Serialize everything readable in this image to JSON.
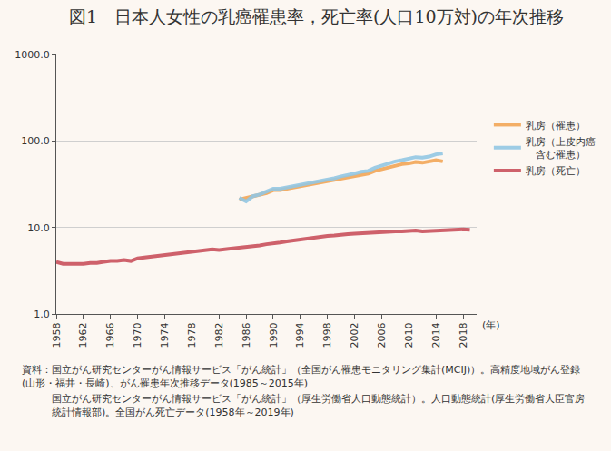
{
  "chart_data": {
    "type": "line",
    "title": "図1　日本人女性の乳癌罹患率，死亡率(人口10万対)の年次推移",
    "xlabel": "(年)",
    "source": [
      "資料：国立がん研究センターがん情報サービス「がん統計」（全国がん罹患モニタリング集計(MCIJ)）。高精度地域がん登録(山形・福井・長崎)、がん罹患年次推移データ(1985～2015年)",
      "国立がん研究センターがん情報サービス「がん統計」（厚生労働省人口動態統計）。人口動態統計(厚生労働省大臣官房統計情報部)。全国がん死亡データ(1958年～2019年)"
    ],
    "log": "y",
    "grid": "y",
    "legend": "right",
    "xlim": [
      1958,
      2020
    ],
    "xticks": [
      1958,
      1962,
      1966,
      1970,
      1974,
      1978,
      1982,
      1986,
      1990,
      1994,
      1998,
      2002,
      2006,
      2010,
      2014,
      2018
    ],
    "ylim": [
      1,
      1000
    ],
    "yticks": [
      {
        "value": 1,
        "label": "1.0"
      },
      {
        "value": 10,
        "label": "10.0"
      },
      {
        "value": 100,
        "label": "100.0"
      },
      {
        "value": 1000,
        "label": "1000.0"
      }
    ],
    "series": [
      {
        "name": "乳房（罹患）",
        "color": "#f2a557",
        "x": [
          1985,
          1986,
          1987,
          1988,
          1989,
          1990,
          1991,
          1992,
          1993,
          1994,
          1995,
          1996,
          1997,
          1998,
          1999,
          2000,
          2001,
          2002,
          2003,
          2004,
          2005,
          2006,
          2007,
          2008,
          2009,
          2010,
          2011,
          2012,
          2013,
          2014,
          2015
        ],
        "values": [
          21,
          22,
          23,
          24,
          25,
          27,
          27,
          28,
          29,
          30,
          31,
          32,
          33,
          34,
          35,
          37,
          38,
          39,
          41,
          42,
          45,
          47,
          50,
          52,
          54,
          55,
          57,
          56,
          58,
          60,
          58
        ]
      },
      {
        "name": "乳房（上皮内癌含む罹患）",
        "color": "#92c6e3",
        "x": [
          1985,
          1986,
          1987,
          1988,
          1989,
          1990,
          1991,
          1992,
          1993,
          1994,
          1995,
          1996,
          1997,
          1998,
          1999,
          2000,
          2001,
          2002,
          2003,
          2004,
          2005,
          2006,
          2007,
          2008,
          2009,
          2010,
          2011,
          2012,
          2013,
          2014,
          2015
        ],
        "values": [
          22,
          20,
          23,
          24,
          26,
          28,
          28,
          29,
          30,
          31,
          32,
          33,
          34,
          36,
          37,
          39,
          40,
          42,
          44,
          45,
          49,
          52,
          55,
          58,
          60,
          62,
          65,
          64,
          66,
          70,
          72
        ]
      },
      {
        "name": "乳房（死亡）",
        "color": "#c9505c",
        "x": [
          1958,
          1959,
          1960,
          1961,
          1962,
          1963,
          1964,
          1965,
          1966,
          1967,
          1968,
          1969,
          1970,
          1971,
          1972,
          1973,
          1974,
          1975,
          1976,
          1977,
          1978,
          1979,
          1980,
          1981,
          1982,
          1983,
          1984,
          1985,
          1986,
          1987,
          1988,
          1989,
          1990,
          1991,
          1992,
          1993,
          1994,
          1995,
          1996,
          1997,
          1998,
          1999,
          2000,
          2001,
          2002,
          2003,
          2004,
          2005,
          2006,
          2007,
          2008,
          2009,
          2010,
          2011,
          2012,
          2013,
          2014,
          2015,
          2016,
          2017,
          2018,
          2019
        ],
        "values": [
          4.0,
          3.8,
          3.8,
          3.8,
          3.8,
          3.9,
          3.9,
          4.0,
          4.1,
          4.1,
          4.2,
          4.1,
          4.4,
          4.5,
          4.6,
          4.7,
          4.8,
          4.9,
          5.0,
          5.1,
          5.2,
          5.4,
          5.5,
          5.6,
          5.5,
          5.6,
          5.8,
          5.9,
          6.0,
          6.1,
          6.2,
          6.4,
          6.5,
          6.7,
          6.9,
          7.1,
          7.3,
          7.5,
          7.7,
          7.9,
          8.0,
          8.1,
          8.3,
          8.4,
          8.5,
          8.6,
          8.7,
          8.8,
          8.9,
          8.9,
          9.0,
          9.0,
          9.1,
          9.2,
          9.0,
          9.1,
          9.2,
          9.2,
          9.3,
          9.4,
          9.5,
          9.4
        ]
      }
    ]
  }
}
